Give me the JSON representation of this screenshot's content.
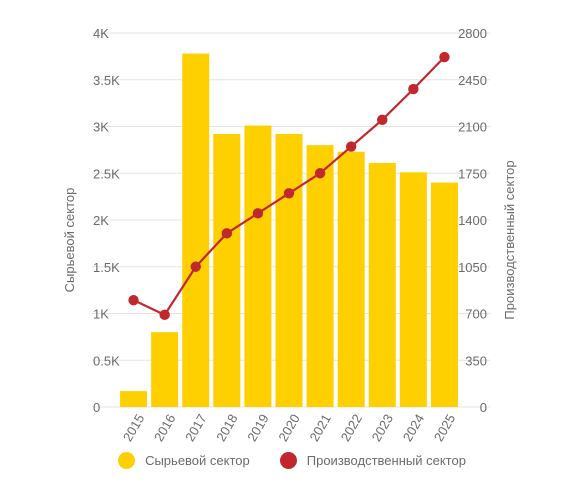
{
  "colors": {
    "bar": "#FFD000",
    "line": "#C1272D",
    "grid": "#e4e4e4",
    "text": "#6b6b6b"
  },
  "chart_data": {
    "type": "bar+line",
    "categories": [
      "2015",
      "2016",
      "2017",
      "2018",
      "2019",
      "2020",
      "2021",
      "2022",
      "2023",
      "2024",
      "2025"
    ],
    "left_axis": {
      "label": "Сырьевой сектор",
      "range": [
        0,
        4000
      ],
      "ticks": [
        0,
        500,
        1000,
        1500,
        2000,
        2500,
        3000,
        3500,
        4000
      ],
      "tick_labels": [
        "0",
        "0.5K",
        "1K",
        "1.5K",
        "2K",
        "2.5K",
        "3K",
        "3.5K",
        "4K"
      ]
    },
    "right_axis": {
      "label": "Производственный сектор",
      "range": [
        0,
        2800
      ],
      "ticks": [
        0,
        350,
        700,
        1050,
        1400,
        1750,
        2100,
        2450,
        2800
      ],
      "tick_labels": [
        "0",
        "350",
        "700",
        "1050",
        "1400",
        "1750",
        "2100",
        "2450",
        "2800"
      ]
    },
    "series": [
      {
        "name": "Сырьевой сектор",
        "type": "bar",
        "axis": "left",
        "values": [
          170,
          800,
          3780,
          2920,
          3010,
          2920,
          2800,
          2730,
          2610,
          2510,
          2400
        ]
      },
      {
        "name": "Производственный сектор",
        "type": "line",
        "axis": "right",
        "values": [
          800,
          690,
          1050,
          1300,
          1450,
          1600,
          1750,
          1950,
          2150,
          2380,
          2620
        ]
      }
    ],
    "grid": true,
    "legend_position": "bottom-center"
  }
}
